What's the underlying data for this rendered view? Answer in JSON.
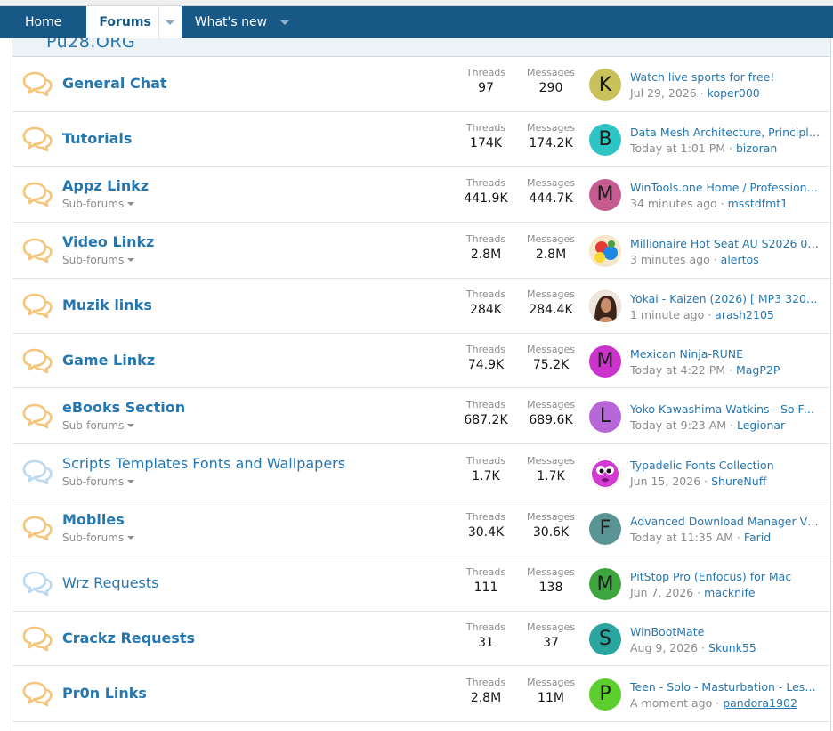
{
  "nav": {
    "home": "Home",
    "forums": "Forums",
    "whats_new": "What's new"
  },
  "site_title": "Pu28.ORG",
  "stat_labels": {
    "threads": "Threads",
    "messages": "Messages"
  },
  "colors": {
    "navbar": "#185886",
    "link": "#2577b1",
    "icon_unread": "#f5c57a",
    "icon_read": "#bcd9ef"
  },
  "forums": [
    {
      "title": "General Chat",
      "bold": true,
      "icon": "chat-bubbles-icon",
      "read": false,
      "sub": "",
      "threads": "97",
      "messages": "290",
      "avatar_letter": "K",
      "avatar_color": "#c9c25b",
      "last_title": "Watch live sports for free!",
      "last_date": "Jul 29, 2026",
      "last_user": "koper000",
      "user_ul": false
    },
    {
      "title": "Tutorials",
      "bold": true,
      "icon": "chat-bubbles-icon",
      "read": false,
      "sub": "",
      "threads": "174K",
      "messages": "174.2K",
      "avatar_letter": "B",
      "avatar_color": "#2ec4c4",
      "last_title": "Data Mesh Architecture, Principles ...",
      "last_date": "Today at 1:01 PM",
      "last_user": "bizoran",
      "user_ul": false
    },
    {
      "title": "Appz Linkz",
      "bold": true,
      "icon": "chat-bubbles-icon",
      "read": false,
      "sub": "Sub-forums",
      "threads": "441.9K",
      "messages": "444.7K",
      "avatar_letter": "M",
      "avatar_color": "#c65b8f",
      "last_title": "WinTools.one Home / Professional ...",
      "last_date": "34 minutes ago",
      "last_user": "msstdfmt1",
      "user_ul": false
    },
    {
      "title": "Video Linkz",
      "bold": true,
      "icon": "chat-bubbles-icon",
      "read": false,
      "sub": "Sub-forums",
      "threads": "2.8M",
      "messages": "2.8M",
      "avatar_letter": "",
      "avatar_color": "#f2d7a8",
      "last_title": "Millionaire Hot Seat AU S2026 08 1...",
      "last_date": "3 minutes ago",
      "last_user": "alertos",
      "user_ul": false
    },
    {
      "title": "Muzik links",
      "bold": true,
      "icon": "chat-bubbles-icon",
      "read": false,
      "sub": "",
      "threads": "284K",
      "messages": "284.4K",
      "avatar_letter": "",
      "avatar_color": "#7a5a48",
      "last_title": "Yokai - Kaizen (2026) [ MP3 320 kb...",
      "last_date": "1 minute ago",
      "last_user": "arash2105",
      "user_ul": false
    },
    {
      "title": "Game Linkz",
      "bold": true,
      "icon": "chat-bubbles-icon",
      "read": false,
      "sub": "",
      "threads": "74.9K",
      "messages": "75.2K",
      "avatar_letter": "M",
      "avatar_color": "#cc33cc",
      "last_title": "Mexican Ninja-RUNE",
      "last_date": "Today at 4:22 PM",
      "last_user": "MagP2P",
      "user_ul": false
    },
    {
      "title": "eBooks Section",
      "bold": true,
      "icon": "chat-bubbles-icon",
      "read": false,
      "sub": "Sub-forums",
      "threads": "687.2K",
      "messages": "689.6K",
      "avatar_letter": "L",
      "avatar_color": "#b867d9",
      "last_title": "Yoko Kawashima Watkins - So Far fr...",
      "last_date": "Today at 9:23 AM",
      "last_user": "Legionar",
      "user_ul": false
    },
    {
      "title": "Scripts Templates Fonts and Wallpapers",
      "bold": false,
      "icon": "chat-bubbles-icon",
      "read": true,
      "sub": "Sub-forums",
      "threads": "1.7K",
      "messages": "1.7K",
      "avatar_letter": "",
      "avatar_color": "#d23ad2",
      "last_title": "Typadelic Fonts Collection",
      "last_date": "Jun 15, 2026",
      "last_user": "ShureNuff",
      "user_ul": false
    },
    {
      "title": "Mobiles",
      "bold": true,
      "icon": "chat-bubbles-icon",
      "read": false,
      "sub": "Sub-forums",
      "threads": "30.4K",
      "messages": "30.6K",
      "avatar_letter": "F",
      "avatar_color": "#5a9494",
      "last_title": "Advanced Download Manager V14....",
      "last_date": "Today at 11:35 AM",
      "last_user": "Farid",
      "user_ul": false
    },
    {
      "title": "Wrz Requests",
      "bold": false,
      "icon": "chat-bubbles-icon",
      "read": true,
      "sub": "",
      "threads": "111",
      "messages": "138",
      "avatar_letter": "M",
      "avatar_color": "#3fa63f",
      "last_title": "PitStop Pro (Enfocus) for Mac",
      "last_date": "Jun 7, 2026",
      "last_user": "macknife",
      "user_ul": false
    },
    {
      "title": "Crackz Requests",
      "bold": true,
      "icon": "chat-bubbles-icon",
      "read": false,
      "sub": "",
      "threads": "31",
      "messages": "37",
      "avatar_letter": "S",
      "avatar_color": "#2aa5a0",
      "last_title": "WinBootMate",
      "last_date": "Aug 9, 2026",
      "last_user": "Skunk55",
      "user_ul": false
    },
    {
      "title": "Pr0n Links",
      "bold": true,
      "icon": "chat-bubbles-icon",
      "read": false,
      "sub": "",
      "threads": "2.8M",
      "messages": "11M",
      "avatar_letter": "P",
      "avatar_color": "#5ccf2e",
      "last_title": "Teen - Solo - Masturbation - Lesbia...",
      "last_date": "A moment ago",
      "last_user": "pandora1902",
      "user_ul": true
    }
  ]
}
